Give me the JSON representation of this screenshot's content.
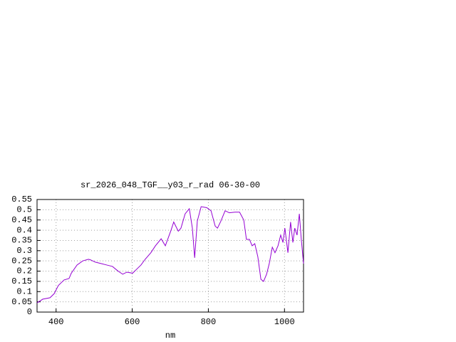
{
  "chart_data": {
    "type": "line",
    "title": "sr_2026_048_TGF__y03_r_rad 06-30-00",
    "x_label": "nm",
    "x": [
      350,
      365,
      384,
      395,
      406,
      421,
      434,
      440,
      455,
      470,
      485,
      492,
      503,
      518,
      533,
      548,
      563,
      575,
      586,
      601,
      612,
      623,
      634,
      649,
      661,
      676,
      687,
      702,
      709,
      721,
      728,
      739,
      750,
      758,
      764,
      771,
      781,
      796,
      807,
      818,
      824,
      833,
      844,
      855,
      870,
      882,
      893,
      900,
      908,
      915,
      922,
      930,
      938,
      945,
      953,
      960,
      968,
      975,
      983,
      990,
      996,
      1001,
      1009,
      1016,
      1022,
      1027,
      1033,
      1039,
      1044,
      1050
    ],
    "series": [
      {
        "color": "#9400d3",
        "values": [
          0.045,
          0.063,
          0.07,
          0.09,
          0.13,
          0.157,
          0.164,
          0.19,
          0.23,
          0.25,
          0.258,
          0.254,
          0.244,
          0.237,
          0.23,
          0.223,
          0.2,
          0.185,
          0.195,
          0.19,
          0.21,
          0.23,
          0.258,
          0.29,
          0.324,
          0.358,
          0.324,
          0.4,
          0.44,
          0.395,
          0.41,
          0.48,
          0.505,
          0.41,
          0.265,
          0.445,
          0.515,
          0.51,
          0.495,
          0.42,
          0.41,
          0.445,
          0.495,
          0.485,
          0.488,
          0.488,
          0.45,
          0.355,
          0.355,
          0.324,
          0.334,
          0.27,
          0.16,
          0.15,
          0.185,
          0.237,
          0.317,
          0.29,
          0.324,
          0.376,
          0.34,
          0.41,
          0.29,
          0.44,
          0.34,
          0.41,
          0.376,
          0.48,
          0.358,
          0.237
        ]
      }
    ],
    "xlim": [
      350,
      1050
    ],
    "xticks": [
      400,
      600,
      800,
      1000
    ],
    "ylim": [
      0,
      0.55
    ],
    "yticks": [
      0,
      0.05,
      0.1,
      0.15,
      0.2,
      0.25,
      0.3,
      0.35,
      0.4,
      0.45,
      0.5,
      0.55
    ],
    "grid": true
  }
}
